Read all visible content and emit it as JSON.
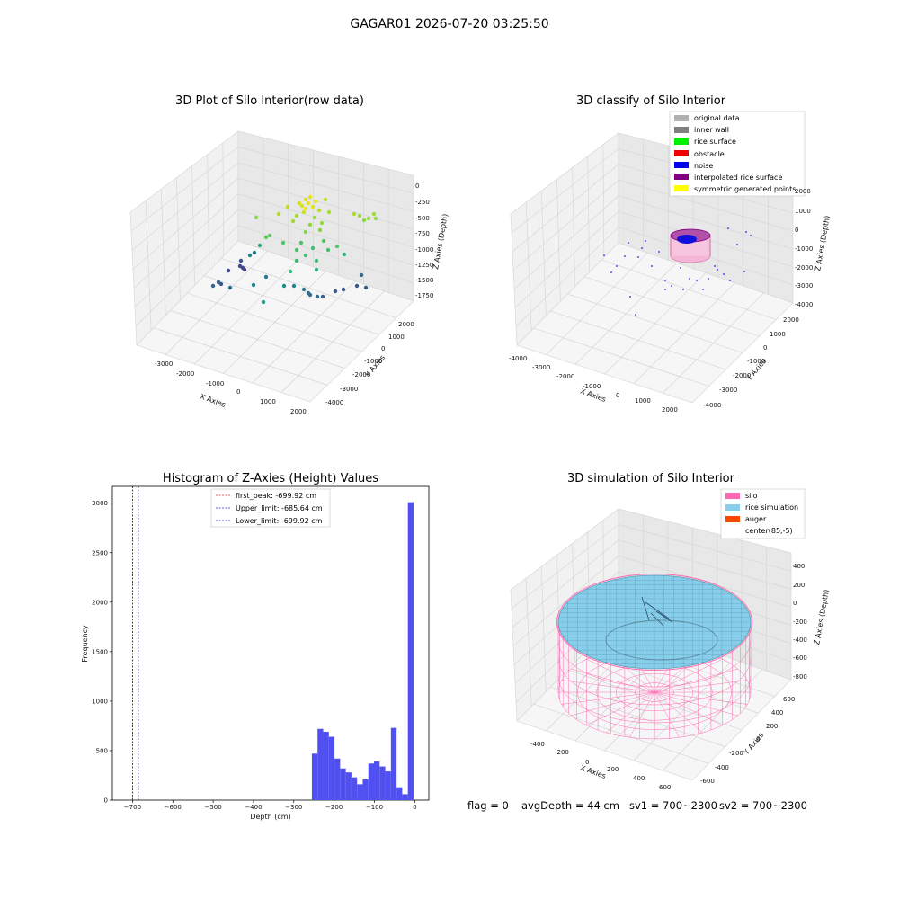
{
  "suptitle": "GAGAR01 2026-07-20 03:25:50",
  "footer": {
    "flag": "flag = 0",
    "avg_depth": "avgDepth = 44 cm",
    "sv1": "sv1 = 700~2300",
    "sv2": "sv2 = 700~2300"
  },
  "colors": {
    "hist_bar": "#5050f0",
    "first_peak": "#e02020",
    "limits": "#2020c0",
    "silo": "#ff69b4",
    "rice": "#87ceeb",
    "auger": "#ff4500",
    "original": "#b0b0b0",
    "inner_wall": "#808080",
    "rice_surface": "#00ee00",
    "obstacle": "#ee0000",
    "noise": "#0000ee",
    "interp": "#800080",
    "symmetric": "#ffff00"
  },
  "chart_data": [
    {
      "id": "raw",
      "type": "scatter",
      "title": "3D Plot of Silo Interior(row data)",
      "xlabel": "X Axies",
      "ylabel": "Y Axies",
      "zlabel": "Z Axies (Depth)",
      "x_ticks": [
        "-3000",
        "-2000",
        "-1000",
        "0",
        "1000",
        "2000"
      ],
      "y_ticks": [
        "-4000",
        "-3000",
        "-2000",
        "-1000",
        "0",
        "1000",
        "2000"
      ],
      "z_ticks": [
        "0",
        "-250",
        "-500",
        "-750",
        "-1000",
        "-1250",
        "-1500",
        "-1750"
      ],
      "colormap": "viridis"
    },
    {
      "id": "classify",
      "type": "scatter",
      "title": "3D classify of Silo Interior",
      "xlabel": "X Axies",
      "ylabel": "Y Axies",
      "zlabel": "Z Axies (Depth)",
      "x_ticks": [
        "-4000",
        "-3000",
        "-2000",
        "-1000",
        "0",
        "1000",
        "2000"
      ],
      "y_ticks": [
        "-4000",
        "-3000",
        "-2000",
        "-1000",
        "0",
        "1000",
        "2000"
      ],
      "z_ticks": [
        "2000",
        "1000",
        "0",
        "-1000",
        "-2000",
        "-3000",
        "-4000"
      ],
      "legend": [
        "original data",
        "inner wall",
        "rice surface",
        "obstacle",
        "noise",
        "interpolated rice surface",
        "symmetric generated points"
      ],
      "legend_position": "top-right"
    },
    {
      "id": "hist",
      "type": "bar",
      "title": "Histogram of Z-Axies (Height) Values",
      "xlabel": "Depth (cm)",
      "ylabel": "Frequency",
      "xlim": [
        -750,
        35
      ],
      "ylim": [
        0,
        3170
      ],
      "x_ticks": [
        -700,
        -600,
        -500,
        -400,
        -300,
        -200,
        -100,
        0
      ],
      "y_ticks": [
        0,
        500,
        1000,
        1500,
        2000,
        2500,
        3000
      ],
      "bin_width": 14,
      "bins": [
        {
          "start": -255,
          "count": 470
        },
        {
          "start": -241,
          "count": 720
        },
        {
          "start": -227,
          "count": 690
        },
        {
          "start": -213,
          "count": 640
        },
        {
          "start": -199,
          "count": 420
        },
        {
          "start": -185,
          "count": 320
        },
        {
          "start": -171,
          "count": 280
        },
        {
          "start": -157,
          "count": 230
        },
        {
          "start": -143,
          "count": 160
        },
        {
          "start": -129,
          "count": 210
        },
        {
          "start": -115,
          "count": 370
        },
        {
          "start": -101,
          "count": 390
        },
        {
          "start": -87,
          "count": 340
        },
        {
          "start": -73,
          "count": 290
        },
        {
          "start": -59,
          "count": 730
        },
        {
          "start": -45,
          "count": 130
        },
        {
          "start": -31,
          "count": 60
        },
        {
          "start": -17,
          "count": 3010
        }
      ],
      "vlines": [
        {
          "label": "first_peak: -699.92 cm",
          "x": -699.92,
          "color": "#e02020"
        },
        {
          "label": "Upper_limit: -685.64 cm",
          "x": -685.64,
          "color": "#2020c0"
        },
        {
          "label": "Lower_limit: -699.92 cm",
          "x": -699.92,
          "color": "#2020c0"
        }
      ],
      "legend_position": "top-center"
    },
    {
      "id": "sim",
      "type": "surface",
      "title": "3D simulation of Silo Interior",
      "xlabel": "X Axies",
      "ylabel": "Y Axies",
      "zlabel": "Z Axies (Depth)",
      "x_ticks": [
        "-400",
        "-200",
        "0",
        "200",
        "400",
        "600"
      ],
      "y_ticks": [
        "-600",
        "-400",
        "-200",
        "0",
        "200",
        "400",
        "600"
      ],
      "z_ticks": [
        "400",
        "200",
        "0",
        "-200",
        "-400",
        "-600",
        "-800"
      ],
      "legend": [
        "silo",
        "rice simulation",
        "auger",
        "center(85,-5)"
      ],
      "legend_position": "top-right"
    }
  ]
}
